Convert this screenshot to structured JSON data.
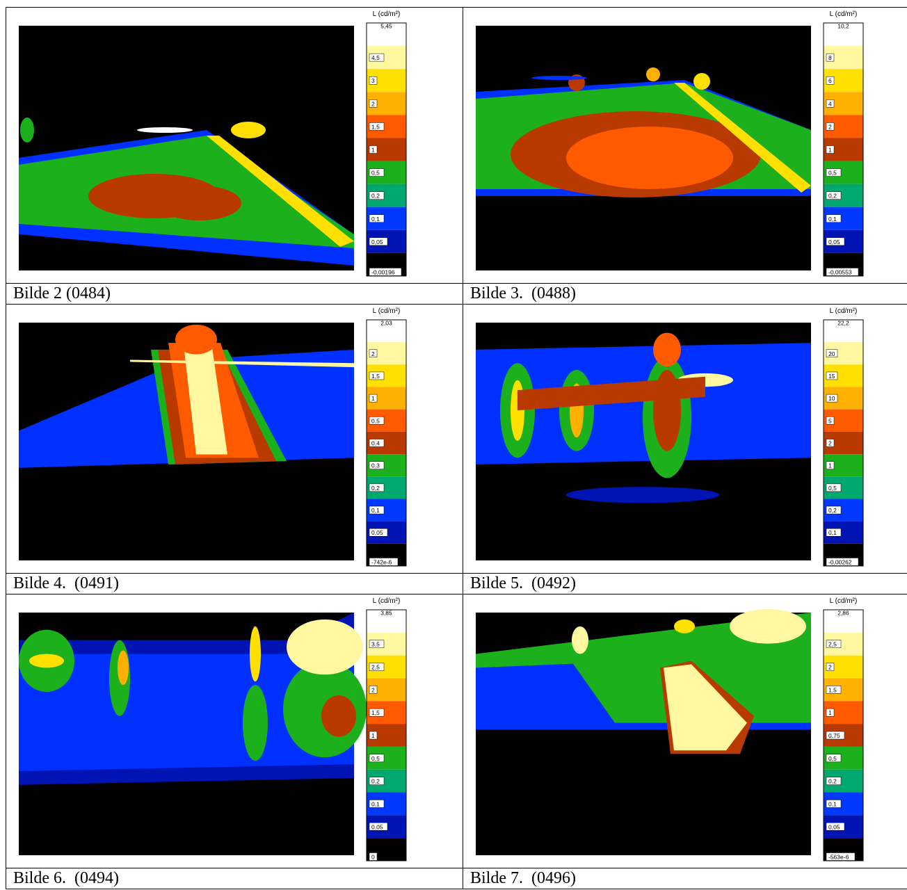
{
  "panels": [
    {
      "caption": "Bilde 2 (0484)",
      "scale": {
        "unit": "L (cd/m²)",
        "labels": [
          "5,45",
          "4,5",
          "3",
          "2",
          "1,5",
          "1",
          "0,5",
          "0,2",
          "0,1",
          "0,05",
          "-0,00196"
        ]
      }
    },
    {
      "caption": "Bilde 3.  (0488)",
      "scale": {
        "unit": "L (cd/m²)",
        "labels": [
          "10,2",
          "8",
          "6",
          "4",
          "2",
          "1",
          "0,5",
          "0,2",
          "0,1",
          "0,05",
          "-0,00553"
        ]
      }
    },
    {
      "caption": "Bilde 4.  (0491)",
      "scale": {
        "unit": "L (cd/m²)",
        "labels": [
          "2,03",
          "2",
          "1,5",
          "1",
          "0,5",
          "0,4",
          "0,3",
          "0,2",
          "0,1",
          "0,05",
          "-742e-6"
        ]
      }
    },
    {
      "caption": "Bilde 5.  (0492)",
      "scale": {
        "unit": "L (cd/m²)",
        "labels": [
          "22,2",
          "20",
          "15",
          "10",
          "5",
          "2",
          "1",
          "0,5",
          "0,2",
          "0,1",
          "-0,00262"
        ]
      }
    },
    {
      "caption": "Bilde 6.  (0494)",
      "scale": {
        "unit": "L (cd/m²)",
        "labels": [
          "3,85",
          "3,5",
          "2,5",
          "2",
          "1,5",
          "1",
          "0,5",
          "0,2",
          "0,1",
          "0,05",
          "0"
        ]
      }
    },
    {
      "caption": "Bilde 7.  (0496)",
      "scale": {
        "unit": "L (cd/m²)",
        "labels": [
          "2,86",
          "2,5",
          "2",
          "1,5",
          "1",
          "0,75",
          "0,5",
          "0,2",
          "0,1",
          "0,05",
          "-563e-6"
        ]
      }
    }
  ]
}
